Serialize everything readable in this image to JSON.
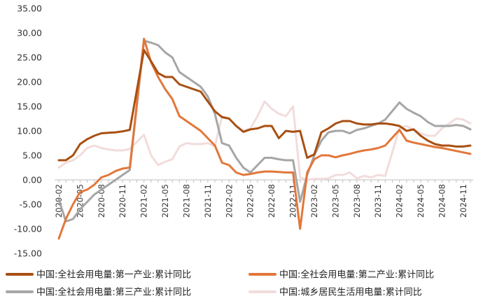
{
  "chart_data": {
    "type": "line",
    "ylim": [
      -15,
      35
    ],
    "yticks": [
      "35.00",
      "30.00",
      "25.00",
      "20.00",
      "15.00",
      "10.00",
      "5.00",
      "0.00",
      "-5.00",
      "-10.00",
      "-15.00"
    ],
    "x": [
      "2020-02",
      "2020-03",
      "2020-04",
      "2020-05",
      "2020-06",
      "2020-07",
      "2020-08",
      "2020-09",
      "2020-10",
      "2020-11",
      "2020-12",
      "2021-01",
      "2021-02",
      "2021-03",
      "2021-04",
      "2021-05",
      "2021-06",
      "2021-07",
      "2021-08",
      "2021-09",
      "2021-10",
      "2021-11",
      "2021-12",
      "2022-01",
      "2022-02",
      "2022-03",
      "2022-04",
      "2022-05",
      "2022-06",
      "2022-07",
      "2022-08",
      "2022-09",
      "2022-10",
      "2022-11",
      "2022-12",
      "2023-01",
      "2023-02",
      "2023-03",
      "2023-04",
      "2023-05",
      "2023-06",
      "2023-07",
      "2023-08",
      "2023-09",
      "2023-10",
      "2023-11",
      "2023-12",
      "2024-01",
      "2024-02",
      "2024-03",
      "2024-04",
      "2024-05",
      "2024-06",
      "2024-07",
      "2024-08",
      "2024-09",
      "2024-10",
      "2024-11",
      "2024-12"
    ],
    "xtick_labels": [
      "2020-02",
      "2020-05",
      "2020-08",
      "2020-11",
      "2021-02",
      "2021-05",
      "2021-08",
      "2021-11",
      "2022-02",
      "2022-05",
      "2022-08",
      "2022-11",
      "2023-02",
      "2023-05",
      "2023-08",
      "2023-11",
      "2024-02",
      "2024-05",
      "2024-08",
      "2024-11"
    ],
    "grid": false,
    "legend_position": "bottom",
    "series": [
      {
        "name": "中国:全社会用电量:第一产业:累计同比",
        "color": "#a84f12",
        "width": 3,
        "values": [
          4.0,
          4.0,
          5.0,
          7.3,
          8.3,
          9.0,
          9.5,
          9.6,
          9.7,
          9.9,
          10.2,
          null,
          26.5,
          24.2,
          21.8,
          21.0,
          21.0,
          19.5,
          19.0,
          18.5,
          18.0,
          16.0,
          14.0,
          12.8,
          12.5,
          11.0,
          9.8,
          10.3,
          10.5,
          11.0,
          11.0,
          8.5,
          10.0,
          9.8,
          10.0,
          4.5,
          5.2,
          9.7,
          10.5,
          11.5,
          12.0,
          12.0,
          11.5,
          11.3,
          11.3,
          11.5,
          11.5,
          11.3,
          11.0,
          10.0,
          10.3,
          9.0,
          8.0,
          7.3,
          7.0,
          7.0,
          6.8,
          6.8,
          7.0
        ]
      },
      {
        "name": "中国:全社会用电量:第二产业:累计同比",
        "color": "#e2773a",
        "width": 3,
        "values": [
          -12.0,
          -8.0,
          -5.0,
          -2.5,
          -2.0,
          -1.0,
          0.5,
          1.0,
          1.8,
          2.3,
          2.5,
          null,
          28.8,
          24.0,
          21.0,
          18.5,
          16.5,
          13.0,
          12.0,
          11.0,
          10.0,
          8.5,
          7.0,
          3.5,
          3.0,
          1.5,
          1.0,
          1.2,
          1.5,
          1.7,
          1.7,
          1.6,
          1.5,
          1.5,
          -10.0,
          1.5,
          4.2,
          5.0,
          5.0,
          4.6,
          5.0,
          5.3,
          5.7,
          6.0,
          6.2,
          6.5,
          7.0,
          null,
          10.2,
          8.0,
          7.6,
          7.3,
          7.0,
          6.7,
          6.5,
          6.2,
          5.9,
          5.6,
          5.3
        ]
      },
      {
        "name": "中国:全社会用电量:第三产业:累计同比",
        "color": "#a6a6a6",
        "width": 3,
        "values": [
          -4.0,
          -8.5,
          -8.0,
          -6.0,
          -4.5,
          -3.0,
          -2.0,
          -1.0,
          0.0,
          1.0,
          2.0,
          null,
          28.4,
          28.0,
          27.5,
          26.0,
          25.0,
          22.0,
          21.0,
          20.0,
          19.0,
          17.0,
          13.5,
          7.5,
          7.0,
          4.5,
          2.5,
          1.5,
          3.0,
          4.5,
          4.5,
          4.2,
          4.0,
          4.0,
          -4.5,
          1.0,
          5.0,
          8.0,
          9.7,
          10.0,
          10.0,
          9.5,
          10.2,
          10.5,
          11.0,
          11.5,
          12.3,
          null,
          15.8,
          14.5,
          13.7,
          13.0,
          11.8,
          11.0,
          11.0,
          11.0,
          11.2,
          11.0,
          10.3
        ]
      },
      {
        "name": "中国:城乡居民生活用电量:累计同比",
        "color": "#f2dcdc",
        "width": 3,
        "values": [
          2.5,
          3.5,
          4.0,
          5.0,
          6.5,
          7.0,
          6.5,
          6.2,
          6.0,
          6.0,
          6.3,
          null,
          9.2,
          5.0,
          3.0,
          3.7,
          4.2,
          6.8,
          7.5,
          7.3,
          7.3,
          7.5,
          6.8,
          13.0,
          12.5,
          11.0,
          10.0,
          10.5,
          13.0,
          16.0,
          14.5,
          13.5,
          13.0,
          15.0,
          0.5,
          0.0,
          0.2,
          0.2,
          0.3,
          1.0,
          1.0,
          1.5,
          0.3,
          0.8,
          0.5,
          1.0,
          0.8,
          null,
          10.5,
          11.0,
          10.2,
          9.5,
          9.0,
          9.0,
          10.5,
          11.5,
          12.5,
          12.3,
          11.5
        ]
      }
    ]
  }
}
